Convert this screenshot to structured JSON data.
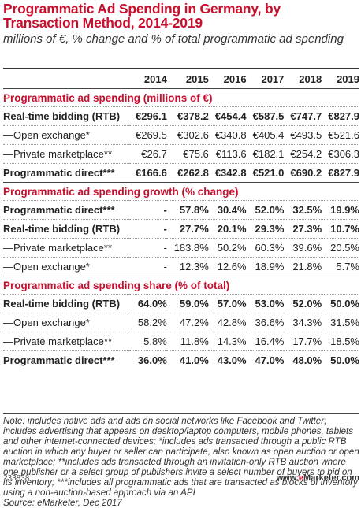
{
  "title": "Programmatic Ad Spending in Germany, by Transaction Method, 2014-2019",
  "subtitle": "millions of €, % change and % of total programmatic ad spending",
  "years": [
    "2014",
    "2015",
    "2016",
    "2017",
    "2018",
    "2019"
  ],
  "sections": [
    {
      "heading": "Programmatic ad spending (millions of €)",
      "rows": [
        {
          "label": "Real-time bidding (RTB)",
          "bold": true,
          "values": [
            "€296.1",
            "€378.2",
            "€454.4",
            "€587.5",
            "€747.7",
            "€827.9"
          ]
        },
        {
          "label": "—Open exchange*",
          "bold": false,
          "values": [
            "€269.5",
            "€302.6",
            "€340.8",
            "€405.4",
            "€493.5",
            "€521.6"
          ]
        },
        {
          "label": "—Private marketplace**",
          "bold": false,
          "values": [
            "€26.7",
            "€75.6",
            "€113.6",
            "€182.1",
            "€254.2",
            "€306.3"
          ]
        },
        {
          "label": "Programmatic direct***",
          "bold": true,
          "values": [
            "€166.6",
            "€262.8",
            "€342.8",
            "€521.0",
            "€690.2",
            "€827.9"
          ]
        }
      ]
    },
    {
      "heading": "Programmatic ad spending growth (% change)",
      "rows": [
        {
          "label": "Programmatic direct***",
          "bold": true,
          "values": [
            "-",
            "57.8%",
            "30.4%",
            "52.0%",
            "32.5%",
            "19.9%"
          ]
        },
        {
          "label": "Real-time bidding (RTB)",
          "bold": true,
          "values": [
            "-",
            "27.7%",
            "20.1%",
            "29.3%",
            "27.3%",
            "10.7%"
          ]
        },
        {
          "label": "—Private marketplace**",
          "bold": false,
          "values": [
            "-",
            "183.8%",
            "50.2%",
            "60.3%",
            "39.6%",
            "20.5%"
          ]
        },
        {
          "label": "—Open exchange*",
          "bold": false,
          "values": [
            "-",
            "12.3%",
            "12.6%",
            "18.9%",
            "21.8%",
            "5.7%"
          ]
        }
      ]
    },
    {
      "heading": "Programmatic ad spending share (% of total)",
      "rows": [
        {
          "label": "Real-time bidding (RTB)",
          "bold": true,
          "values": [
            "64.0%",
            "59.0%",
            "57.0%",
            "53.0%",
            "52.0%",
            "50.0%"
          ]
        },
        {
          "label": "—Open exchange*",
          "bold": false,
          "values": [
            "58.2%",
            "47.2%",
            "42.8%",
            "36.6%",
            "34.3%",
            "31.5%"
          ]
        },
        {
          "label": "—Private marketplace**",
          "bold": false,
          "values": [
            "5.8%",
            "11.8%",
            "14.3%",
            "16.4%",
            "17.7%",
            "18.5%"
          ]
        },
        {
          "label": "Programmatic direct***",
          "bold": true,
          "values": [
            "36.0%",
            "41.0%",
            "43.0%",
            "47.0%",
            "48.0%",
            "50.0%"
          ]
        }
      ]
    }
  ],
  "note": "Note: includes native ads and ads on social networks like Facebook and Twitter; includes advertising that appears on desktop/laptop computers, mobile phones, tablets and other internet-connected devices; *includes ads transacted through a public RTB auction in which any buyer or seller can participate, also known as open auction or open marketplace; **includes ads transacted through an invitation-only RTB auction where one publisher or a select group of publishers invite a select number of buyers to bid on its inventory; ***includes all programmatic ads that are transacted as blocks of inventory using a non-auction-based approach via an API",
  "source": "Source: eMarketer, Dec 2017",
  "chart_id": "233838",
  "brand": {
    "prefix": "www.",
    "e": "e",
    "rest": "Marketer",
    "suffix": ".com"
  },
  "colors": {
    "accent": "#c8102e"
  }
}
